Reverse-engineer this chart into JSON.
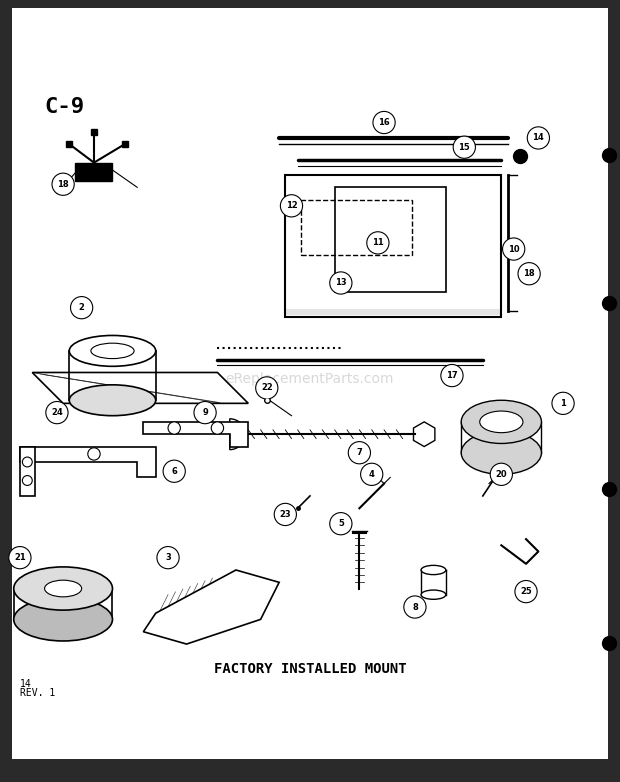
{
  "title": "C-9",
  "subtitle": "FACTORY INSTALLED MOUNT",
  "page_num": "14",
  "rev": "REV. 1",
  "bg_color": "#ffffff",
  "border_color": "#000000",
  "outer_bg": "#2a2a2a",
  "text_color": "#000000",
  "watermark": "eReplacementParts.com",
  "watermark_color": "#cccccc",
  "watermark_alpha": 0.4
}
